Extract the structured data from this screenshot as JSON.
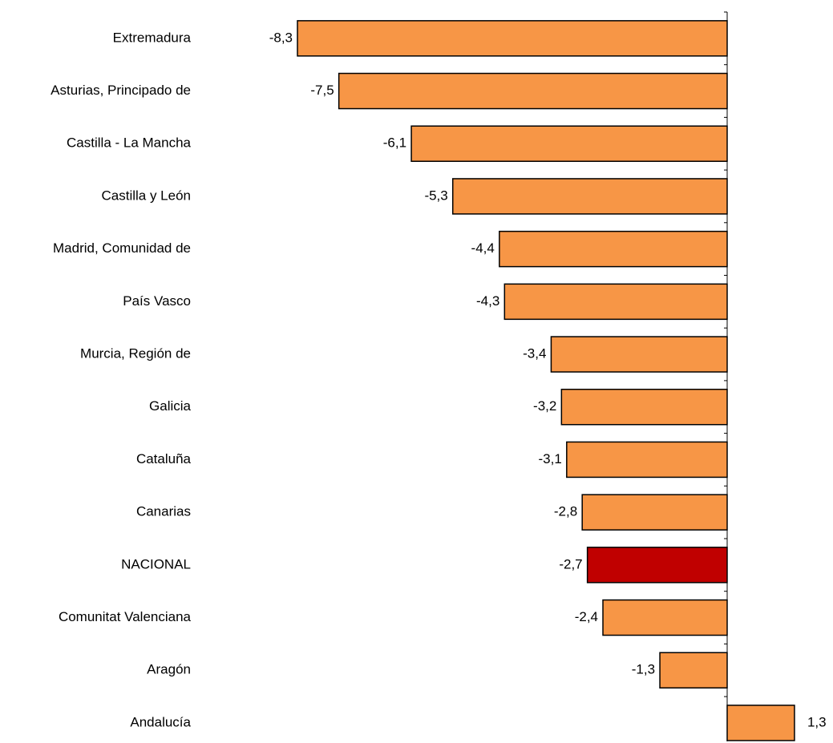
{
  "chart_data": {
    "type": "bar",
    "orientation": "horizontal",
    "categories": [
      "Extremadura",
      "Asturias, Principado de",
      "Castilla - La Mancha",
      "Castilla y León",
      "Madrid, Comunidad de",
      "País Vasco",
      "Murcia, Región de",
      "Galicia",
      "Cataluña",
      "Canarias",
      "NACIONAL",
      "Comunitat Valenciana",
      "Aragón",
      "Andalucía"
    ],
    "values": [
      -8.3,
      -7.5,
      -6.1,
      -5.3,
      -4.4,
      -4.3,
      -3.4,
      -3.2,
      -3.1,
      -2.8,
      -2.7,
      -2.4,
      -1.3,
      1.3
    ],
    "value_labels": [
      "-8,3",
      "-7,5",
      "-6,1",
      "-5,3",
      "-4,4",
      "-4,3",
      "-3,4",
      "-3,2",
      "-3,1",
      "-2,8",
      "-2,7",
      "-2,4",
      "-1,3",
      "1,3"
    ],
    "colors": [
      "#f79646",
      "#f79646",
      "#f79646",
      "#f79646",
      "#f79646",
      "#f79646",
      "#f79646",
      "#f79646",
      "#f79646",
      "#f79646",
      "#c00000",
      "#f79646",
      "#f79646",
      "#f79646"
    ]
  }
}
